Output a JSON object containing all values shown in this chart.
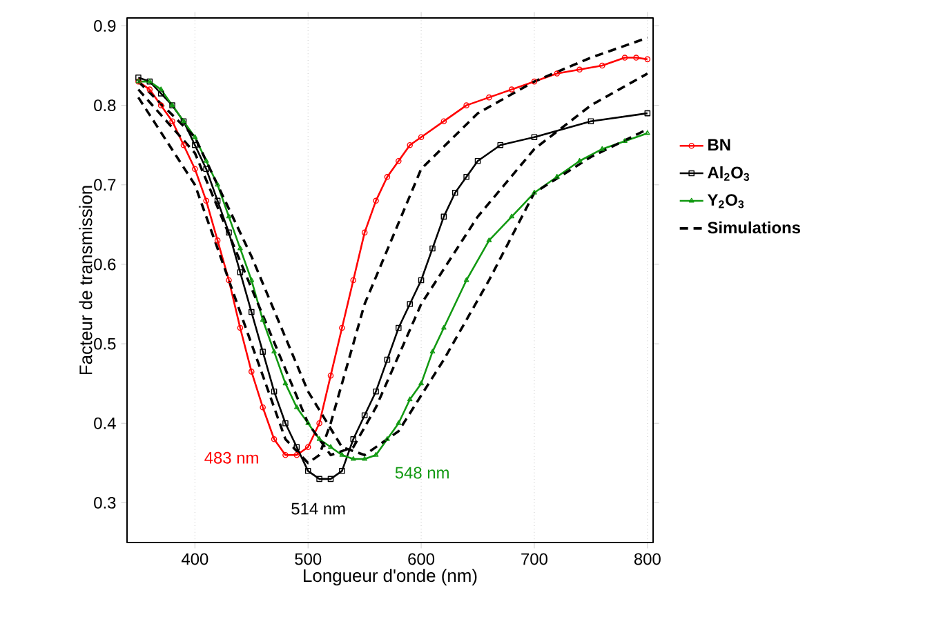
{
  "chart_data": {
    "type": "line",
    "xlabel": "Longueur d'onde (nm)",
    "ylabel": "Facteur de transmission",
    "xlim": [
      340,
      805
    ],
    "ylim": [
      0.25,
      0.91
    ],
    "xticks": [
      400,
      500,
      600,
      700,
      800
    ],
    "yticks": [
      0.3,
      0.4,
      0.5,
      0.6,
      0.7,
      0.8,
      0.9
    ],
    "grid": "x",
    "legend": "right",
    "series": [
      {
        "name": "**BN**",
        "color": "#ff0000",
        "marker": "circle",
        "line_style": "solid",
        "x": [
          350,
          360,
          370,
          380,
          390,
          400,
          410,
          420,
          430,
          440,
          450,
          460,
          470,
          480,
          490,
          500,
          510,
          520,
          530,
          540,
          550,
          560,
          570,
          580,
          590,
          600,
          620,
          640,
          660,
          680,
          700,
          720,
          740,
          760,
          780,
          790,
          800
        ],
        "values": [
          0.83,
          0.82,
          0.8,
          0.78,
          0.75,
          0.72,
          0.68,
          0.63,
          0.58,
          0.52,
          0.465,
          0.42,
          0.38,
          0.36,
          0.36,
          0.37,
          0.4,
          0.46,
          0.52,
          0.58,
          0.64,
          0.68,
          0.71,
          0.73,
          0.75,
          0.76,
          0.78,
          0.8,
          0.81,
          0.82,
          0.83,
          0.84,
          0.845,
          0.85,
          0.86,
          0.86,
          0.858
        ]
      },
      {
        "name": "**Al$_{2}$O$_{3}$**",
        "color": "#000000",
        "marker": "square",
        "line_style": "solid",
        "x": [
          350,
          360,
          370,
          380,
          390,
          400,
          410,
          420,
          430,
          440,
          450,
          460,
          470,
          480,
          490,
          500,
          510,
          520,
          530,
          540,
          550,
          560,
          570,
          580,
          590,
          600,
          610,
          620,
          630,
          640,
          650,
          670,
          700,
          750,
          800
        ],
        "values": [
          0.835,
          0.83,
          0.815,
          0.8,
          0.78,
          0.75,
          0.72,
          0.68,
          0.64,
          0.59,
          0.54,
          0.49,
          0.44,
          0.4,
          0.37,
          0.34,
          0.33,
          0.33,
          0.34,
          0.38,
          0.41,
          0.44,
          0.48,
          0.52,
          0.55,
          0.58,
          0.62,
          0.66,
          0.69,
          0.71,
          0.73,
          0.75,
          0.76,
          0.78,
          0.79
        ]
      },
      {
        "name": "**Y$_{2}$O$_{3}$**",
        "color": "#119911",
        "marker": "triangle",
        "line_style": "solid",
        "x": [
          350,
          360,
          370,
          380,
          390,
          400,
          410,
          420,
          430,
          440,
          450,
          460,
          470,
          480,
          490,
          500,
          510,
          520,
          530,
          540,
          550,
          560,
          570,
          580,
          590,
          600,
          610,
          620,
          640,
          660,
          680,
          700,
          720,
          740,
          760,
          780,
          800
        ],
        "values": [
          0.83,
          0.83,
          0.82,
          0.8,
          0.78,
          0.76,
          0.73,
          0.7,
          0.66,
          0.62,
          0.58,
          0.53,
          0.49,
          0.45,
          0.42,
          0.4,
          0.38,
          0.37,
          0.36,
          0.355,
          0.355,
          0.36,
          0.38,
          0.4,
          0.43,
          0.45,
          0.49,
          0.52,
          0.58,
          0.63,
          0.66,
          0.69,
          0.71,
          0.73,
          0.745,
          0.755,
          0.765
        ]
      },
      {
        "name": "**Simulations**",
        "color": "#000000",
        "marker": "none",
        "line_style": "dashed",
        "x": [
          350,
          400,
          450,
          480,
          500,
          510,
          520,
          550,
          600,
          650,
          700,
          750,
          800,
          null,
          350,
          400,
          450,
          500,
          520,
          540,
          560,
          600,
          650,
          700,
          750,
          800,
          null,
          350,
          400,
          450,
          500,
          530,
          550,
          580,
          620,
          660,
          700,
          750,
          800
        ],
        "values": [
          0.81,
          0.7,
          0.5,
          0.38,
          0.35,
          0.36,
          0.4,
          0.55,
          0.72,
          0.79,
          0.83,
          0.86,
          0.885,
          null,
          0.82,
          0.74,
          0.57,
          0.4,
          0.36,
          0.37,
          0.42,
          0.55,
          0.66,
          0.745,
          0.8,
          0.84,
          null,
          0.83,
          0.76,
          0.61,
          0.44,
          0.37,
          0.36,
          0.39,
          0.48,
          0.58,
          0.69,
          0.735,
          0.77
        ]
      }
    ],
    "annotations": [
      {
        "text": "483 nm",
        "x": 483,
        "y": 0.36
      },
      {
        "text": "514 nm",
        "x": 514,
        "y": 0.33
      },
      {
        "text": "548 nm",
        "x": 548,
        "y": 0.355
      }
    ]
  }
}
